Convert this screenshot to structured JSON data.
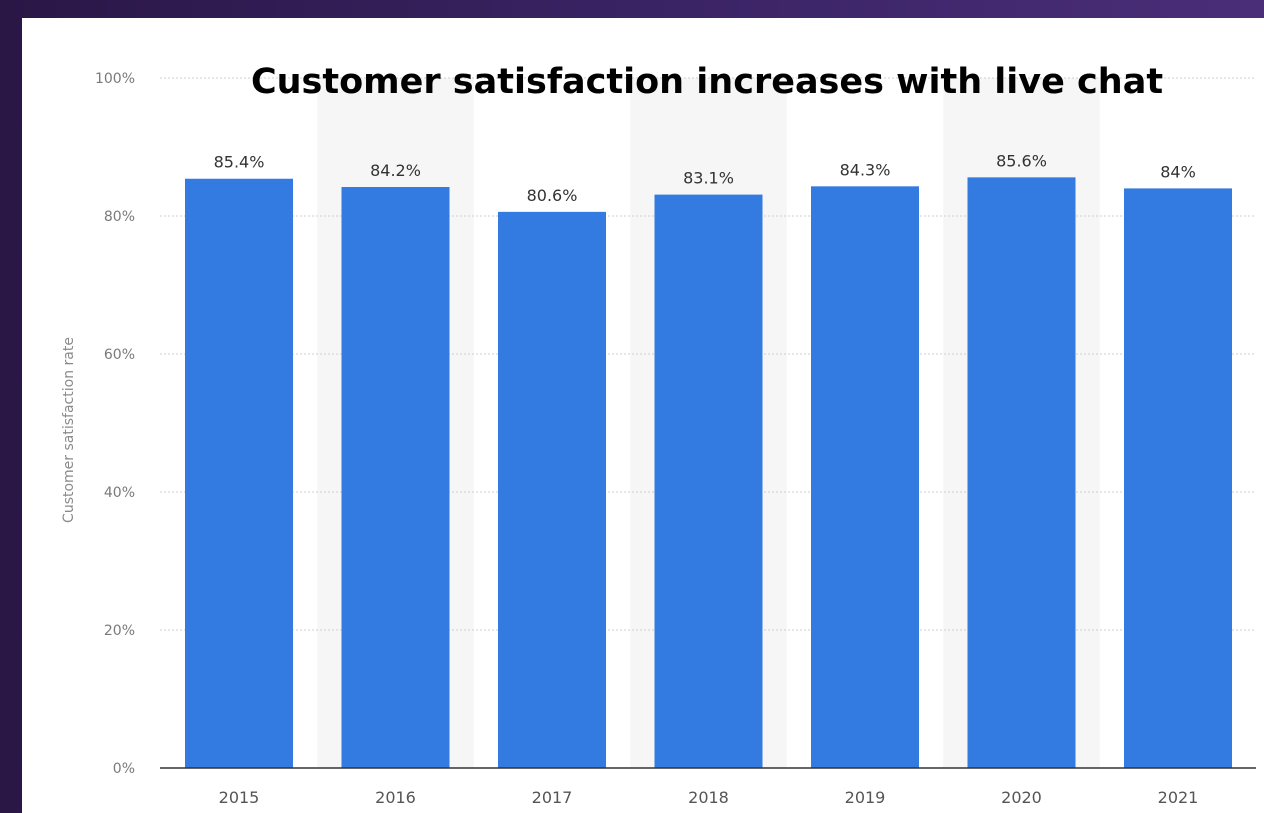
{
  "chart_data": {
    "type": "bar",
    "title": "Customer satisfaction increases with live chat",
    "xlabel": "",
    "ylabel": "Customer satisfaction rate",
    "categories": [
      "2015",
      "2016",
      "2017",
      "2018",
      "2019",
      "2020",
      "2021"
    ],
    "values": [
      85.4,
      84.2,
      80.6,
      83.1,
      84.3,
      85.6,
      84
    ],
    "data_labels": [
      "85.4%",
      "84.2%",
      "80.6%",
      "83.1%",
      "84.3%",
      "85.6%",
      "84%"
    ],
    "ylim": [
      0,
      100
    ],
    "yticks": [
      0,
      20,
      40,
      60,
      80,
      100
    ],
    "ytick_labels": [
      "0%",
      "20%",
      "40%",
      "60%",
      "80%",
      "100%"
    ],
    "grid": true,
    "colors": {
      "bar": "#337be0",
      "band": "#f6f6f6",
      "grid": "#cfcfcf",
      "background_outer": "#3b2466"
    }
  }
}
